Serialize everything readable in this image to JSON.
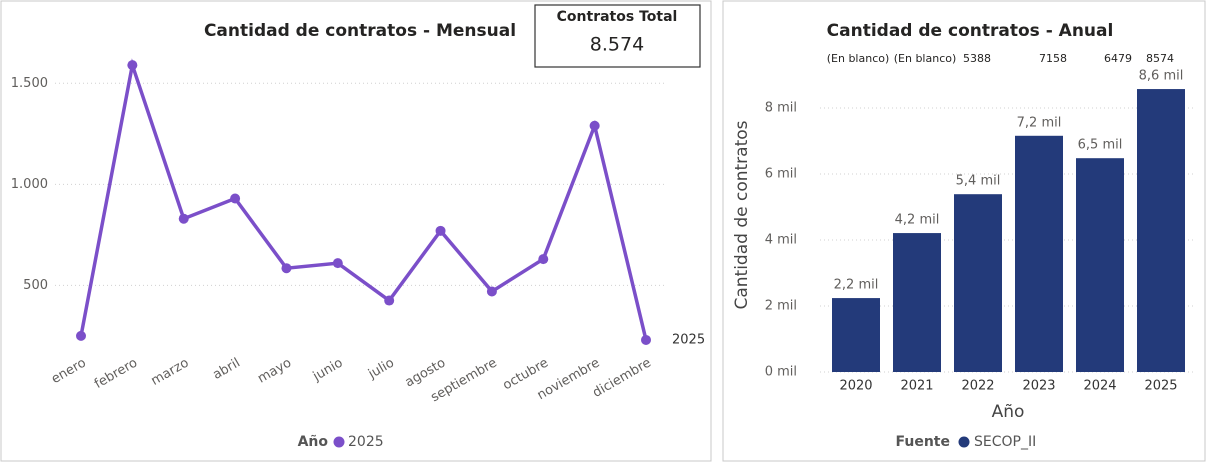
{
  "card": {
    "title": "Contratos Total",
    "value": "8.574"
  },
  "chart_data": [
    {
      "type": "line",
      "title": "Cantidad de contratos - Mensual",
      "categories": [
        "enero",
        "febrero",
        "marzo",
        "abril",
        "mayo",
        "junio",
        "julio",
        "agosto",
        "septiembre",
        "octubre",
        "noviembre",
        "diciembre"
      ],
      "series": [
        {
          "name": "2025",
          "color": "#7b4fc9",
          "values": [
            250,
            1590,
            830,
            930,
            585,
            610,
            425,
            770,
            470,
            630,
            1290,
            230
          ]
        }
      ],
      "ylim": [
        200,
        1650
      ],
      "yticks": [
        {
          "value": 500,
          "label": "500"
        },
        {
          "value": 1000,
          "label": "1.000"
        },
        {
          "value": 1500,
          "label": "1.500"
        }
      ],
      "grid": true,
      "legend_title": "Año"
    },
    {
      "type": "bar",
      "title": "Cantidad de contratos - Anual",
      "categories": [
        "2020",
        "2021",
        "2022",
        "2023",
        "2024",
        "2025"
      ],
      "series": [
        {
          "name": "SECOP_II",
          "color": "#233a7a",
          "values": [
            2240,
            4210,
            5388,
            7158,
            6479,
            8574
          ],
          "value_labels": [
            "2,2 mil",
            "4,2 mil",
            "5,4 mil",
            "7,2 mil",
            "6,5 mil",
            "8,6 mil"
          ]
        }
      ],
      "header_row": [
        "(En blanco)",
        "(En blanco)",
        null,
        null,
        null,
        null
      ],
      "ylim": [
        0,
        9000
      ],
      "yticks": [
        {
          "value": 0,
          "label": "0 mil"
        },
        {
          "value": 2000,
          "label": "2 mil"
        },
        {
          "value": 4000,
          "label": "4 mil"
        },
        {
          "value": 6000,
          "label": "6 mil"
        },
        {
          "value": 8000,
          "label": "8 mil"
        }
      ],
      "grid": true,
      "xlabel": "Año",
      "ylabel": "Cantidad de contratos",
      "legend_title": "Fuente"
    }
  ]
}
